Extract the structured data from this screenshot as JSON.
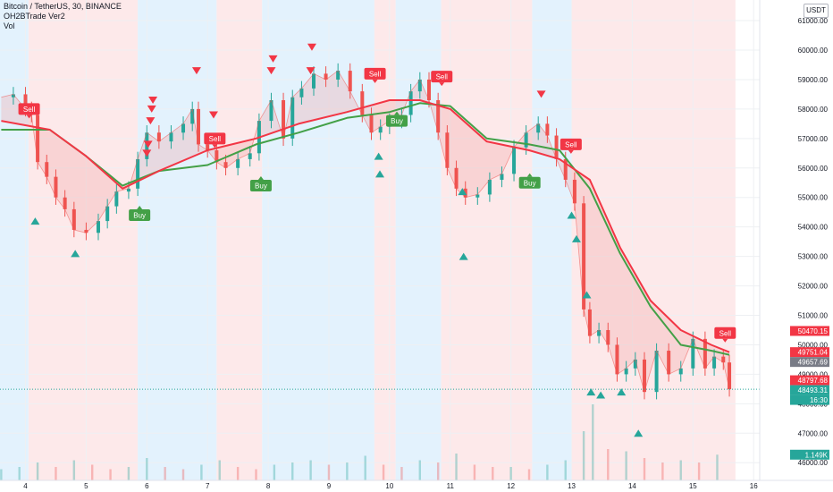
{
  "legend": {
    "symbol_line": "Bitcoin / TetherUS, 30, BINANCE",
    "indicator_line": "OH2BTrade Ver2",
    "volume_line": "Vol"
  },
  "currency_badge": "USDT",
  "colors": {
    "up": "#26a69a",
    "down": "#ef5350",
    "sell": "#f23645",
    "buy": "#43a047",
    "fast_line": "#43a047",
    "slow_line": "#f23645",
    "bg_bull": "#e3f2fd",
    "bg_bear": "#fde9ea"
  },
  "chart_data": {
    "type": "candlestick",
    "title": "Bitcoin / TetherUS, 30, BINANCE",
    "x_ticks": [
      "4",
      "5",
      "6",
      "7",
      "8",
      "9",
      "10",
      "11",
      "12",
      "13",
      "14",
      "15",
      "16"
    ],
    "y_ticks": [
      "61000.00",
      "60000.00",
      "59000.00",
      "58000.00",
      "57000.00",
      "56000.00",
      "55000.00",
      "54000.00",
      "53000.00",
      "52000.00",
      "51000.00",
      "50000.00",
      "49000.00",
      "48000.00",
      "47000.00",
      "46000.00"
    ],
    "ylim": [
      45400,
      61700
    ],
    "xlim": [
      3.58,
      16.1
    ],
    "price_series": {
      "name": "BTCUSDT",
      "x": [
        3.6,
        3.8,
        4.0,
        4.1,
        4.2,
        4.35,
        4.5,
        4.65,
        4.8,
        5.0,
        5.2,
        5.35,
        5.5,
        5.7,
        5.85,
        6.0,
        6.2,
        6.4,
        6.6,
        6.75,
        6.85,
        7.0,
        7.15,
        7.3,
        7.5,
        7.7,
        7.85,
        8.05,
        8.25,
        8.4,
        8.55,
        8.75,
        8.95,
        9.15,
        9.35,
        9.55,
        9.7,
        9.85,
        10.0,
        10.2,
        10.35,
        10.5,
        10.65,
        10.8,
        10.95,
        11.1,
        11.25,
        11.45,
        11.65,
        11.85,
        12.05,
        12.25,
        12.45,
        12.6,
        12.75,
        12.9,
        13.05,
        13.2,
        13.3,
        13.45,
        13.6,
        13.75,
        13.9,
        14.05,
        14.2,
        14.4,
        14.6,
        14.8,
        15.0,
        15.2,
        15.35,
        15.5,
        15.6
      ],
      "close": [
        58400,
        58500,
        58000,
        57800,
        56200,
        55700,
        55000,
        54600,
        53900,
        53800,
        54200,
        54700,
        55200,
        55300,
        56300,
        57200,
        56900,
        57200,
        57500,
        58000,
        56800,
        56600,
        56200,
        56000,
        56300,
        56500,
        57600,
        58300,
        57000,
        58400,
        58700,
        59200,
        59000,
        59300,
        58600,
        57800,
        57200,
        57400,
        57600,
        57800,
        58600,
        59000,
        58300,
        57200,
        56000,
        55300,
        55000,
        55100,
        55600,
        55800,
        56700,
        57200,
        57500,
        57100,
        56300,
        55600,
        54800,
        51200,
        50300,
        50500,
        50000,
        49000,
        49200,
        49500,
        48400,
        49800,
        49000,
        49200,
        50200,
        49200,
        49600,
        49400,
        48493
      ]
    },
    "fast_line": {
      "x": [
        3.6,
        4.4,
        5.0,
        5.6,
        6.2,
        7.0,
        7.8,
        8.5,
        9.3,
        10.0,
        10.5,
        11.0,
        11.6,
        12.3,
        12.8,
        13.3,
        13.8,
        14.3,
        14.8,
        15.3,
        15.6
      ],
      "y": [
        57300,
        57300,
        56400,
        55400,
        55900,
        56100,
        56800,
        57200,
        57700,
        57900,
        58200,
        58100,
        57000,
        56800,
        56600,
        55300,
        53100,
        51300,
        50000,
        49800,
        49657.69
      ]
    },
    "slow_line": {
      "x": [
        3.6,
        4.4,
        5.0,
        5.6,
        6.2,
        7.0,
        7.8,
        8.5,
        9.3,
        10.0,
        10.5,
        11.0,
        11.6,
        12.3,
        12.8,
        13.3,
        13.8,
        14.3,
        14.8,
        15.3,
        15.6
      ],
      "y": [
        57600,
        57300,
        56400,
        55300,
        55900,
        56600,
        57000,
        57500,
        57900,
        58300,
        58300,
        58000,
        56900,
        56600,
        56300,
        55600,
        53300,
        51500,
        50500,
        50000,
        49751.04
      ]
    },
    "background_regions": [
      {
        "x0": 3.58,
        "x1": 4.05,
        "trend": "bull"
      },
      {
        "x0": 4.05,
        "x1": 5.85,
        "trend": "bear"
      },
      {
        "x0": 5.85,
        "x1": 7.15,
        "trend": "bull"
      },
      {
        "x0": 7.15,
        "x1": 7.9,
        "trend": "bear"
      },
      {
        "x0": 7.9,
        "x1": 9.75,
        "trend": "bull"
      },
      {
        "x0": 9.75,
        "x1": 10.1,
        "trend": "bear"
      },
      {
        "x0": 10.1,
        "x1": 10.85,
        "trend": "bull"
      },
      {
        "x0": 10.85,
        "x1": 12.35,
        "trend": "bear"
      },
      {
        "x0": 12.35,
        "x1": 13.0,
        "trend": "bull"
      },
      {
        "x0": 13.0,
        "x1": 15.7,
        "trend": "bear"
      }
    ],
    "signal_labels": [
      {
        "text": "Sell",
        "x": 4.06,
        "y": 58000,
        "type": "sell"
      },
      {
        "text": "Buy",
        "x": 5.88,
        "y": 54400,
        "type": "buy"
      },
      {
        "text": "Sell",
        "x": 7.12,
        "y": 57000,
        "type": "sell"
      },
      {
        "text": "Buy",
        "x": 7.88,
        "y": 55400,
        "type": "buy"
      },
      {
        "text": "Sell",
        "x": 9.76,
        "y": 59200,
        "type": "sell"
      },
      {
        "text": "Buy",
        "x": 10.12,
        "y": 57600,
        "type": "buy"
      },
      {
        "text": "Sell",
        "x": 10.86,
        "y": 59100,
        "type": "sell"
      },
      {
        "text": "Buy",
        "x": 12.31,
        "y": 55500,
        "type": "buy"
      },
      {
        "text": "Sell",
        "x": 12.99,
        "y": 56800,
        "type": "sell"
      },
      {
        "text": "Sell",
        "x": 15.53,
        "y": 50400,
        "type": "sell"
      }
    ],
    "up_arrows": [
      {
        "x": 4.16,
        "y": 54200
      },
      {
        "x": 4.82,
        "y": 53100
      },
      {
        "x": 9.82,
        "y": 56400
      },
      {
        "x": 9.84,
        "y": 55800
      },
      {
        "x": 11.2,
        "y": 55200
      },
      {
        "x": 11.22,
        "y": 53000
      },
      {
        "x": 13.0,
        "y": 54400
      },
      {
        "x": 13.08,
        "y": 53600
      },
      {
        "x": 13.25,
        "y": 51700
      },
      {
        "x": 13.32,
        "y": 48400
      },
      {
        "x": 13.48,
        "y": 48300
      },
      {
        "x": 13.82,
        "y": 48400
      },
      {
        "x": 14.1,
        "y": 47000
      }
    ],
    "down_arrows": [
      {
        "x": 6.0,
        "y": 56500
      },
      {
        "x": 6.02,
        "y": 56800
      },
      {
        "x": 6.06,
        "y": 57600
      },
      {
        "x": 6.08,
        "y": 58000
      },
      {
        "x": 6.1,
        "y": 58300
      },
      {
        "x": 6.82,
        "y": 59300
      },
      {
        "x": 7.1,
        "y": 57800
      },
      {
        "x": 8.05,
        "y": 59300
      },
      {
        "x": 8.08,
        "y": 59700
      },
      {
        "x": 8.7,
        "y": 59300
      },
      {
        "x": 8.72,
        "y": 60100
      },
      {
        "x": 12.5,
        "y": 58500
      }
    ],
    "volume": {
      "x": [
        3.6,
        3.9,
        4.2,
        4.5,
        4.8,
        5.1,
        5.4,
        5.7,
        6.0,
        6.3,
        6.6,
        6.9,
        7.2,
        7.5,
        7.8,
        8.1,
        8.4,
        8.7,
        9.0,
        9.3,
        9.6,
        9.9,
        10.2,
        10.5,
        10.8,
        11.1,
        11.4,
        11.7,
        12.0,
        12.3,
        12.6,
        12.9,
        13.2,
        13.35,
        13.6,
        13.9,
        14.2,
        14.5,
        14.8,
        15.1,
        15.4
      ],
      "values": [
        0.5,
        0.6,
        0.8,
        0.6,
        0.9,
        0.7,
        0.5,
        0.6,
        1.0,
        0.6,
        0.5,
        0.7,
        0.9,
        0.6,
        0.5,
        0.7,
        0.8,
        0.9,
        0.7,
        0.8,
        1.1,
        0.7,
        0.6,
        0.9,
        0.8,
        1.2,
        0.7,
        0.6,
        0.6,
        0.5,
        0.7,
        0.9,
        2.2,
        3.4,
        1.4,
        1.3,
        1.0,
        0.8,
        0.9,
        0.8,
        1.149
      ]
    },
    "price_tags": [
      {
        "text": "50470.15",
        "y": 50470.15,
        "color": "#f23645"
      },
      {
        "text": "49751.04",
        "y": 49751.04,
        "color": "#f23645"
      },
      {
        "text": "49657.69",
        "y": 49657.69,
        "color": "#787b86"
      },
      {
        "text": "48797.68",
        "y": 48797.68,
        "color": "#f23645"
      },
      {
        "text": "48493.31",
        "y": 48493.31,
        "color": "#26a69a"
      }
    ],
    "countdown": "16:30",
    "volume_tag": "1.149K",
    "last_price": 48493.31
  }
}
